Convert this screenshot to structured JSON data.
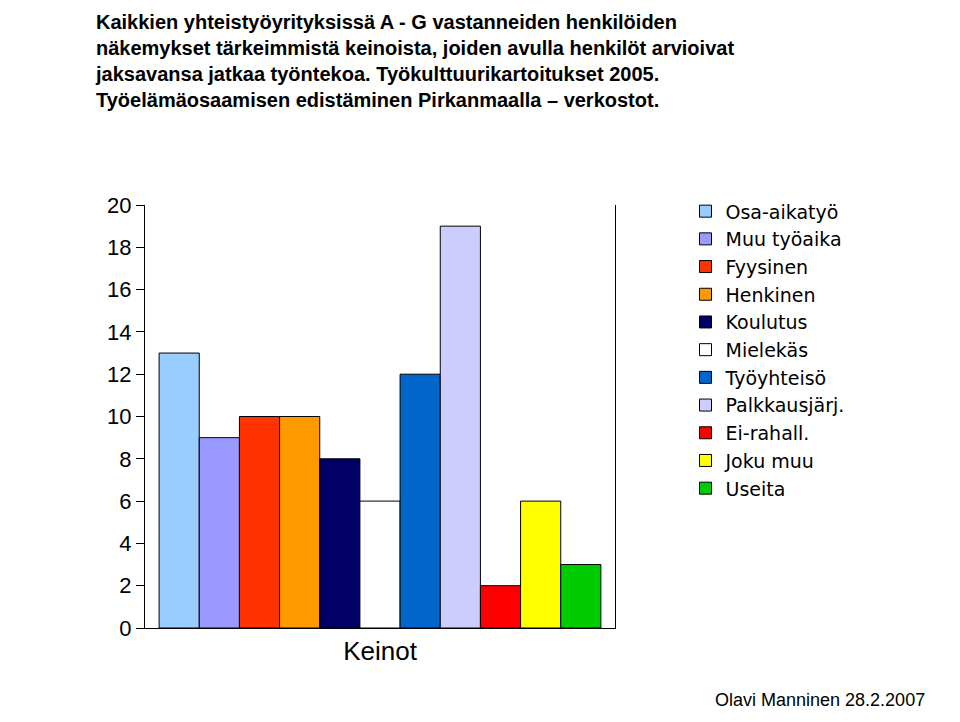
{
  "chart_data": {
    "type": "bar",
    "title": "Kaikkien yhteistyöyrityksissä A - G vastanneiden henkilöiden\nnäkemykset tärkeimmistä keinoista, joiden avulla henkilöt arvioivat\njaksavansa jatkaa työntekoa. Työkulttuurikartoitukset 2005.\nTyöelämäosaamisen edistäminen Pirkanmaalla – verkostot.",
    "categories": [
      "Keinot"
    ],
    "series": [
      {
        "name": "Osa-aikatyö",
        "color": "#99ccff",
        "values": [
          13
        ]
      },
      {
        "name": "Muu työaika",
        "color": "#9999ff",
        "values": [
          9
        ]
      },
      {
        "name": "Fyysinen",
        "color": "#ff3300",
        "values": [
          10
        ]
      },
      {
        "name": "Henkinen",
        "color": "#ff9900",
        "values": [
          10
        ]
      },
      {
        "name": "Koulutus",
        "color": "#000066",
        "values": [
          8
        ]
      },
      {
        "name": "Mielekäs",
        "color": "#ffffff",
        "values": [
          6
        ]
      },
      {
        "name": "Työyhteisö",
        "color": "#0066cc",
        "values": [
          12
        ]
      },
      {
        "name": "Palkkausjärj.",
        "color": "#ccccff",
        "values": [
          19
        ]
      },
      {
        "name": "Ei-rahall.",
        "color": "#ff0000",
        "values": [
          2
        ]
      },
      {
        "name": "Joku muu",
        "color": "#ffff00",
        "values": [
          6
        ]
      },
      {
        "name": "Useita",
        "color": "#00cc00",
        "values": [
          3
        ]
      }
    ],
    "ylim": [
      0,
      20
    ],
    "yticks": [
      0,
      2,
      4,
      6,
      8,
      10,
      12,
      14,
      16,
      18,
      20
    ],
    "grid": false,
    "legend": "right",
    "annotations": [
      "Olavi Manninen 28.2.2007"
    ]
  }
}
